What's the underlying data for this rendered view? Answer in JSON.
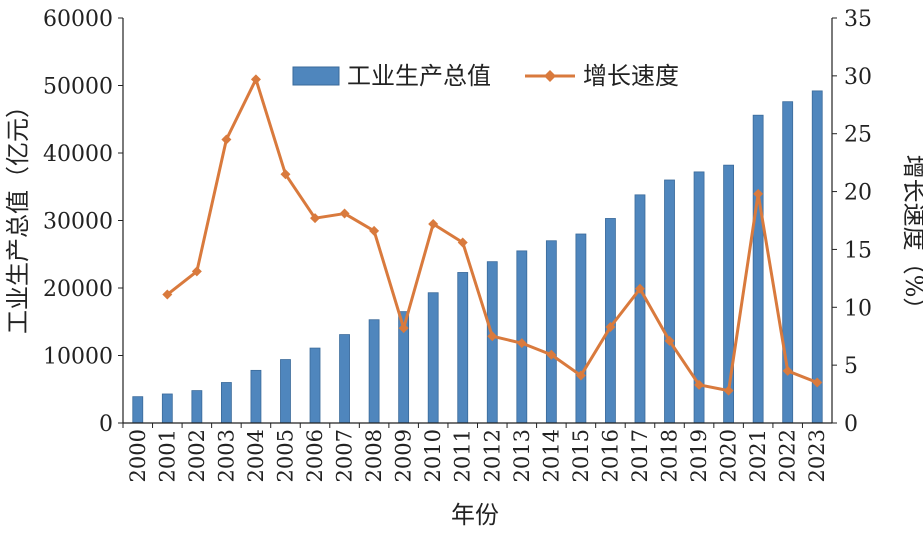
{
  "chart_data": {
    "type": "bar+line",
    "xlabel": "年份",
    "ylabel_left": "工业生产总值（亿元）",
    "ylabel_right": "增长速度（%）",
    "ylim_left": [
      0,
      60000
    ],
    "ylim_right": [
      0,
      35
    ],
    "yticks_left": [
      "0",
      "10000",
      "20000",
      "30000",
      "40000",
      "50000",
      "60000"
    ],
    "yticks_right": [
      "0",
      "5",
      "10",
      "15",
      "20",
      "25",
      "30",
      "35"
    ],
    "categories": [
      "2000",
      "2001",
      "2002",
      "2003",
      "2004",
      "2005",
      "2006",
      "2007",
      "2008",
      "2009",
      "2010",
      "2011",
      "2012",
      "2013",
      "2014",
      "2015",
      "2016",
      "2017",
      "2018",
      "2019",
      "2020",
      "2021",
      "2022",
      "2023"
    ],
    "series": [
      {
        "name": "工业生产总值",
        "type": "bar",
        "axis": "left",
        "color": "#4f86bd",
        "values": [
          3900,
          4300,
          4800,
          6000,
          7800,
          9400,
          11100,
          13100,
          15300,
          16500,
          19300,
          22300,
          23900,
          25500,
          27000,
          28000,
          30300,
          33800,
          36000,
          37200,
          38200,
          45600,
          47600,
          49200
        ]
      },
      {
        "name": "增长速度",
        "type": "line",
        "axis": "right",
        "color": "#d97a3d",
        "values": [
          null,
          11.1,
          13.1,
          24.5,
          29.7,
          21.5,
          17.7,
          18.1,
          16.6,
          8.2,
          17.2,
          15.6,
          7.5,
          6.9,
          5.9,
          4.1,
          8.3,
          11.6,
          7.1,
          3.3,
          2.8,
          19.8,
          4.5,
          3.5
        ]
      }
    ],
    "legend": "top-center",
    "grid": false
  }
}
